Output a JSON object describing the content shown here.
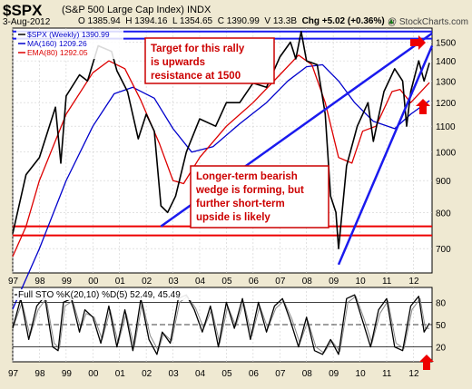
{
  "header": {
    "ticker": "$SPX",
    "name": "(S&P 500 Large Cap Index)",
    "exchange": "INDX",
    "date": "3-Aug-2012",
    "open": "O 1385.94",
    "high": "H 1394.16",
    "low": "L 1354.65",
    "close": "C 1390.99",
    "volume": "V 13.3B",
    "change": "Chg +5.02 (+0.36%)",
    "change_arrow": "up-arrow",
    "credit": "@ StockCharts.com"
  },
  "colors": {
    "background": "#efe9d2",
    "plot_background": "#ffffff",
    "price": "#000000",
    "ma": "#0000cc",
    "ema": "#dd0000",
    "trendline": "#1a1aee",
    "support": "#ee0000",
    "annotation_border": "#cc0000",
    "annotation_text": "#cc0000",
    "arrow": "#ee0000"
  },
  "chart_data": [
    {
      "type": "line",
      "title": "$SPX (Weekly) 1390.99",
      "y_axis": {
        "ticks": [
          700,
          800,
          900,
          1000,
          1100,
          1200,
          1300,
          1400,
          1500
        ],
        "ylim": [
          640,
          1580
        ],
        "scale": "log",
        "side": "right"
      },
      "x_axis": {
        "ticks": [
          "97",
          "98",
          "99",
          "00",
          "01",
          "02",
          "03",
          "04",
          "05",
          "06",
          "07",
          "08",
          "09",
          "10",
          "11",
          "12"
        ],
        "xlim": [
          1997.0,
          2012.7
        ]
      },
      "grid": true,
      "legend": [
        {
          "label": "$SPX (Weekly) 1390.99",
          "color": "#000000"
        },
        {
          "label": "MA(160) 1209.26",
          "color": "#0000cc"
        },
        {
          "label": "EMA(80) 1292.05",
          "color": "#dd0000"
        }
      ],
      "series": [
        {
          "name": "$SPX (Weekly) 1390.99",
          "x": [
            1997.0,
            1997.5,
            1998.0,
            1998.6,
            1998.8,
            1999.0,
            1999.5,
            1999.8,
            2000.2,
            2000.7,
            2000.9,
            2001.3,
            2001.7,
            2002.0,
            2002.3,
            2002.55,
            2002.8,
            2003.1,
            2003.5,
            2004.0,
            2004.6,
            2005.0,
            2005.5,
            2006.0,
            2006.5,
            2007.0,
            2007.4,
            2007.6,
            2007.8,
            2008.0,
            2008.4,
            2008.7,
            2008.9,
            2009.1,
            2009.2,
            2009.5,
            2009.9,
            2010.3,
            2010.5,
            2010.9,
            2011.3,
            2011.6,
            2011.75,
            2011.9,
            2012.2,
            2012.4,
            2012.6
          ],
          "values": [
            740,
            920,
            980,
            1180,
            960,
            1230,
            1330,
            1300,
            1480,
            1450,
            1350,
            1250,
            1050,
            1150,
            1080,
            820,
            800,
            850,
            1000,
            1130,
            1100,
            1200,
            1200,
            1290,
            1270,
            1420,
            1500,
            1410,
            1560,
            1400,
            1380,
            1150,
            850,
            800,
            700,
            950,
            1100,
            1200,
            1040,
            1250,
            1360,
            1300,
            1100,
            1250,
            1400,
            1300,
            1390
          ]
        },
        {
          "name": "MA(160) 1209.26",
          "x": [
            1997.0,
            1998.0,
            1999.0,
            2000.0,
            2000.8,
            2001.5,
            2002.3,
            2003.0,
            2003.7,
            2004.5,
            2005.5,
            2006.5,
            2007.3,
            2008.0,
            2008.6,
            2009.2,
            2009.8,
            2010.5,
            2011.3,
            2011.9,
            2012.6
          ],
          "values": [
            560,
            700,
            900,
            1100,
            1240,
            1270,
            1220,
            1090,
            1000,
            1020,
            1110,
            1200,
            1300,
            1370,
            1380,
            1300,
            1200,
            1120,
            1090,
            1150,
            1209
          ]
        },
        {
          "name": "EMA(80) 1292.05",
          "x": [
            1997.0,
            1997.5,
            1998.0,
            1999.0,
            2000.0,
            2000.6,
            2001.2,
            2001.8,
            2002.5,
            2003.0,
            2003.4,
            2004.0,
            2005.0,
            2006.0,
            2007.0,
            2007.7,
            2008.2,
            2008.7,
            2009.2,
            2009.7,
            2010.1,
            2010.6,
            2011.2,
            2011.5,
            2011.9,
            2012.6
          ],
          "values": [
            680,
            760,
            900,
            1150,
            1340,
            1400,
            1360,
            1210,
            1030,
            900,
            890,
            980,
            1100,
            1200,
            1330,
            1430,
            1380,
            1200,
            980,
            960,
            1080,
            1100,
            1250,
            1260,
            1200,
            1292
          ]
        }
      ],
      "annotations": [
        {
          "text": [
            "Target for this rally",
            "is upwards",
            "resistance at 1500"
          ]
        },
        {
          "text": [
            "Longer-term bearish",
            "wedge is forming, but",
            "further short-term",
            "upside is likely"
          ]
        }
      ],
      "trendlines": [
        {
          "kind": "wedge-upper",
          "points": [
            [
              2002.55,
              760
            ],
            [
              2012.7,
              1550
            ]
          ]
        },
        {
          "kind": "wedge-lower",
          "points": [
            [
              2009.2,
              660
            ],
            [
              2012.7,
              1480
            ]
          ]
        }
      ],
      "horizontal_lines": [
        {
          "kind": "resistance",
          "value": 1560,
          "color": "#1a1aee"
        },
        {
          "kind": "resistance",
          "value": 1520,
          "color": "#1a1aee"
        },
        {
          "kind": "support",
          "value": 760,
          "color": "#ee0000"
        },
        {
          "kind": "support",
          "value": 735,
          "color": "#ee0000"
        }
      ]
    },
    {
      "type": "line",
      "title": "Full STO %K(20,10) %D(5) 52.49, 45.49",
      "y_axis": {
        "ticks": [
          20,
          50,
          80
        ],
        "ylim": [
          0,
          100
        ],
        "side": "right"
      },
      "x_axis": {
        "ticks": [
          "97",
          "98",
          "99",
          "00",
          "01",
          "02",
          "03",
          "04",
          "05",
          "06",
          "07",
          "08",
          "09",
          "10",
          "11",
          "12"
        ],
        "xlim": [
          1997.0,
          2012.7
        ]
      },
      "reference_lines": [
        80,
        50,
        20
      ],
      "series": [
        {
          "name": "%K(20,10)",
          "x": [
            1997.0,
            1997.3,
            1997.6,
            1997.9,
            1998.2,
            1998.5,
            1998.7,
            1998.9,
            1999.2,
            1999.5,
            1999.7,
            2000.0,
            2000.3,
            2000.6,
            2000.9,
            2001.2,
            2001.5,
            2001.8,
            2002.1,
            2002.4,
            2002.6,
            2002.9,
            2003.2,
            2003.5,
            2003.8,
            2004.1,
            2004.4,
            2004.7,
            2005.0,
            2005.3,
            2005.6,
            2005.9,
            2006.2,
            2006.5,
            2006.8,
            2007.1,
            2007.4,
            2007.7,
            2008.0,
            2008.3,
            2008.6,
            2008.9,
            2009.2,
            2009.5,
            2009.8,
            2010.1,
            2010.4,
            2010.7,
            2011.0,
            2011.3,
            2011.6,
            2011.9,
            2012.2,
            2012.4,
            2012.6
          ],
          "values": [
            45,
            85,
            30,
            75,
            88,
            20,
            15,
            80,
            85,
            40,
            70,
            60,
            25,
            75,
            20,
            70,
            15,
            85,
            30,
            10,
            40,
            25,
            85,
            90,
            70,
            40,
            75,
            20,
            80,
            45,
            85,
            30,
            80,
            40,
            75,
            85,
            55,
            20,
            60,
            15,
            10,
            30,
            10,
            85,
            90,
            55,
            20,
            70,
            85,
            20,
            15,
            75,
            88,
            40,
            52
          ]
        },
        {
          "name": "%D(5)",
          "x": [
            1997.0,
            1997.35,
            1997.65,
            1997.95,
            1998.25,
            1998.55,
            1998.75,
            1998.95,
            1999.25,
            1999.55,
            1999.75,
            2000.05,
            2000.35,
            2000.65,
            2000.95,
            2001.25,
            2001.55,
            2001.85,
            2002.15,
            2002.45,
            2002.65,
            2002.95,
            2003.25,
            2003.55,
            2003.85,
            2004.15,
            2004.45,
            2004.75,
            2005.05,
            2005.35,
            2005.65,
            2005.95,
            2006.25,
            2006.55,
            2006.85,
            2007.15,
            2007.45,
            2007.75,
            2008.05,
            2008.35,
            2008.65,
            2008.95,
            2009.25,
            2009.55,
            2009.85,
            2010.15,
            2010.45,
            2010.75,
            2011.05,
            2011.35,
            2011.65,
            2011.95,
            2012.25,
            2012.45,
            2012.6
          ],
          "values": [
            45,
            80,
            35,
            70,
            85,
            25,
            18,
            75,
            82,
            45,
            65,
            60,
            30,
            70,
            25,
            65,
            20,
            80,
            35,
            15,
            38,
            28,
            80,
            88,
            72,
            45,
            70,
            25,
            75,
            48,
            80,
            35,
            75,
            45,
            72,
            82,
            58,
            25,
            55,
            20,
            12,
            28,
            14,
            80,
            88,
            58,
            25,
            65,
            82,
            25,
            18,
            70,
            85,
            45,
            45
          ]
        }
      ]
    }
  ]
}
